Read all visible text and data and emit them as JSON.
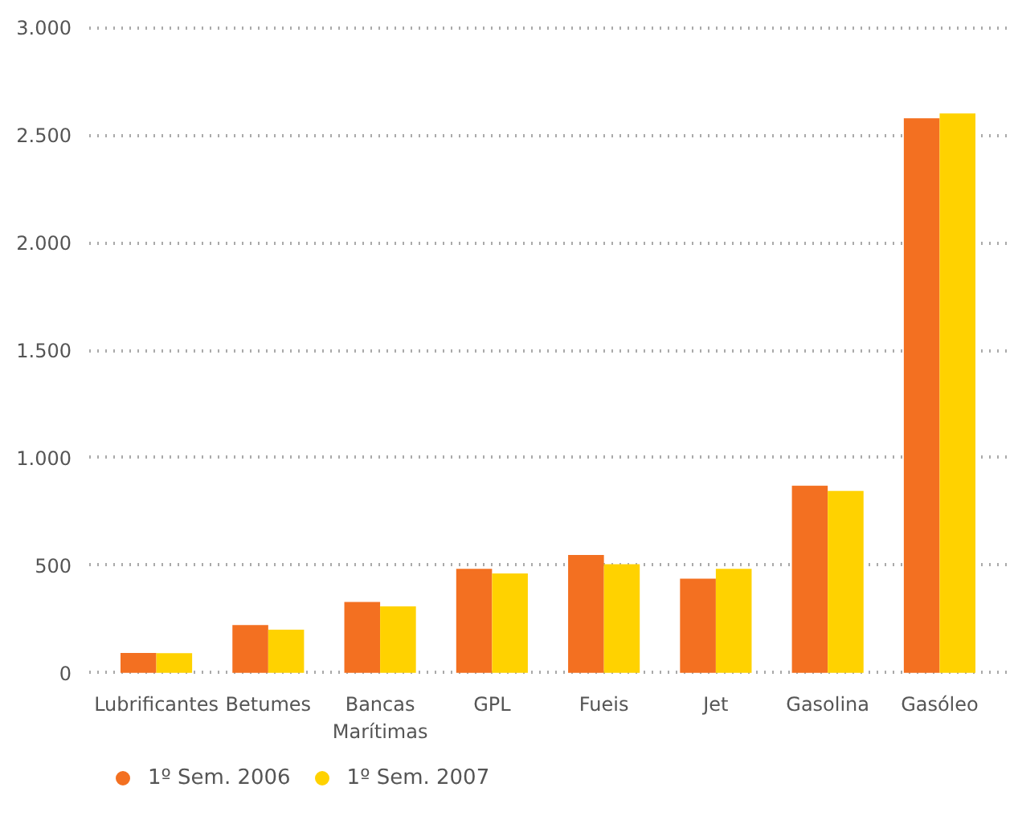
{
  "chart_data": {
    "type": "bar",
    "categories": [
      "Lubrificantes",
      "Betumes",
      "Bancas\nMarítimas",
      "GPL",
      "Fueis",
      "Jet",
      "Gasolina",
      "Gasóleo"
    ],
    "series": [
      {
        "name": "1º Sem. 2006",
        "color": "#f37021",
        "values": [
          93,
          222,
          330,
          484,
          548,
          438,
          870,
          2578
        ]
      },
      {
        "name": "1º Sem. 2007",
        "color": "#ffd200",
        "values": [
          92,
          201,
          309,
          462,
          505,
          484,
          846,
          2600
        ]
      }
    ],
    "ylim": [
      0,
      3000
    ],
    "yticks": [
      {
        "value": 0,
        "label": "0"
      },
      {
        "value": 500,
        "label": "500"
      },
      {
        "value": 1000,
        "label": "1.000"
      },
      {
        "value": 1500,
        "label": "1.500"
      },
      {
        "value": 2000,
        "label": "2.000"
      },
      {
        "value": 2500,
        "label": "2.500"
      },
      {
        "value": 3000,
        "label": "3.000"
      }
    ],
    "grid": "y",
    "legend": "bottom left"
  }
}
